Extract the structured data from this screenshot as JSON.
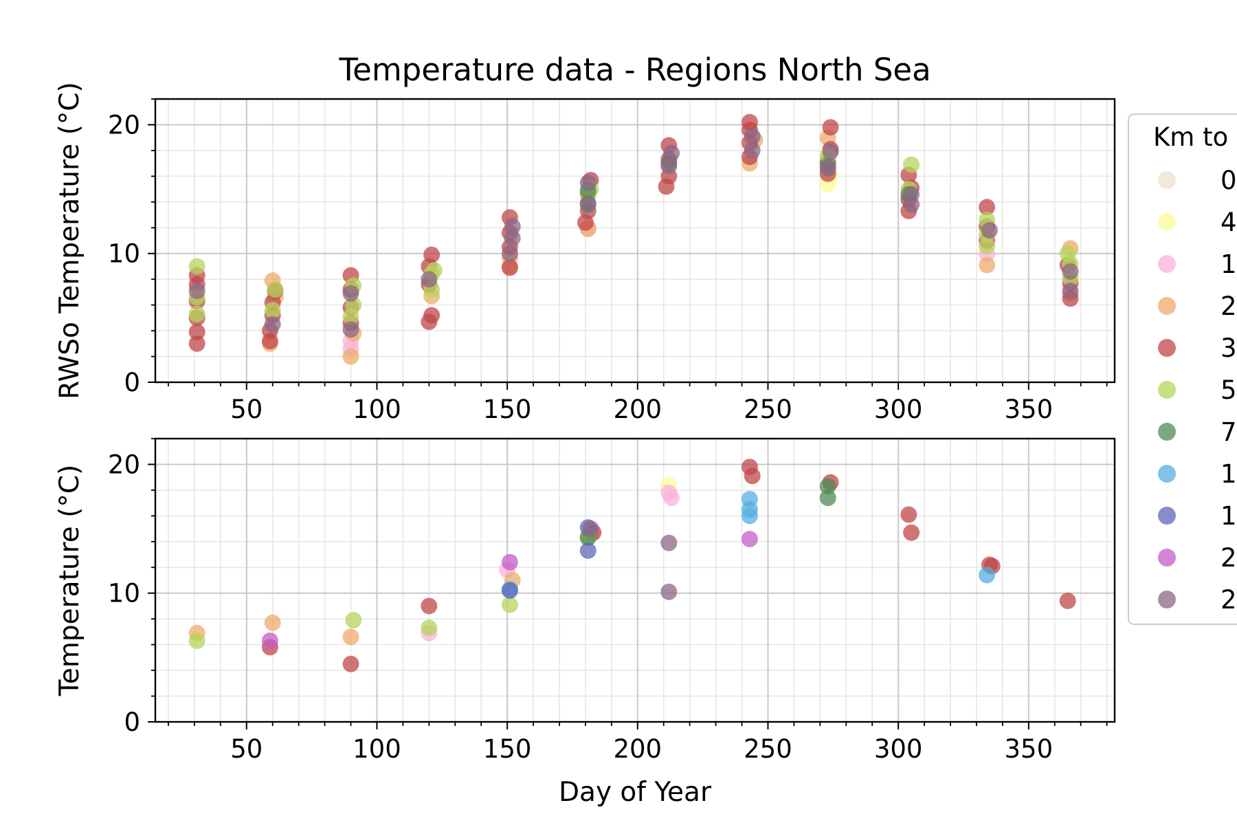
{
  "chart_data": [
    {
      "type": "scatter",
      "title": "Temperature data - Regions North Sea",
      "xlabel": "",
      "ylabel": "RWSo Temperature (°C)",
      "xlim": [
        15,
        383
      ],
      "ylim": [
        0,
        22
      ],
      "xticks": [
        "50",
        "100",
        "150",
        "200",
        "250",
        "300",
        "350"
      ],
      "yticks": [
        "0",
        "10",
        "20"
      ],
      "grid": true,
      "series": [
        {
          "key": "s0",
          "points": []
        },
        {
          "key": "s1",
          "points": [
            [
              273,
              15.4
            ],
            [
              274,
              16.0
            ]
          ]
        },
        {
          "key": "s2",
          "points": [
            [
              90,
              2.6
            ],
            [
              90,
              3.2
            ],
            [
              181,
              12.0
            ],
            [
              334,
              10.0
            ]
          ]
        },
        {
          "key": "s3",
          "points": [
            [
              59,
              3.0
            ],
            [
              60,
              7.9
            ],
            [
              61,
              6.6
            ],
            [
              90,
              2.0
            ],
            [
              91,
              3.8
            ],
            [
              121,
              6.7
            ],
            [
              151,
              9.0
            ],
            [
              151,
              9.7
            ],
            [
              181,
              11.9
            ],
            [
              243,
              17.0
            ],
            [
              245,
              18.8
            ],
            [
              273,
              19.0
            ],
            [
              334,
              9.1
            ],
            [
              366,
              6.9
            ],
            [
              366,
              10.4
            ]
          ]
        },
        {
          "key": "s4",
          "points": [
            [
              31,
              3.0
            ],
            [
              31,
              3.9
            ],
            [
              31,
              5.0
            ],
            [
              31,
              6.3
            ],
            [
              31,
              7.6
            ],
            [
              31,
              8.3
            ],
            [
              59,
              3.2
            ],
            [
              59,
              4.0
            ],
            [
              60,
              5.2
            ],
            [
              60,
              6.2
            ],
            [
              61,
              7.1
            ],
            [
              90,
              4.6
            ],
            [
              90,
              5.8
            ],
            [
              90,
              7.2
            ],
            [
              90,
              8.3
            ],
            [
              120,
              4.7
            ],
            [
              121,
              5.2
            ],
            [
              120,
              7.6
            ],
            [
              120,
              9.0
            ],
            [
              121,
              9.9
            ],
            [
              151,
              8.9
            ],
            [
              151,
              10.5
            ],
            [
              151,
              11.6
            ],
            [
              151,
              12.8
            ],
            [
              180,
              12.4
            ],
            [
              181,
              13.3
            ],
            [
              181,
              14.6
            ],
            [
              182,
              15.7
            ],
            [
              211,
              15.2
            ],
            [
              212,
              16.0
            ],
            [
              212,
              17.3
            ],
            [
              212,
              18.4
            ],
            [
              243,
              17.5
            ],
            [
              243,
              18.6
            ],
            [
              243,
              19.6
            ],
            [
              243,
              20.2
            ],
            [
              273,
              16.2
            ],
            [
              273,
              17.1
            ],
            [
              274,
              18.1
            ],
            [
              274,
              19.8
            ],
            [
              304,
              13.3
            ],
            [
              304,
              14.2
            ],
            [
              305,
              15.1
            ],
            [
              304,
              16.1
            ],
            [
              334,
              11.0
            ],
            [
              334,
              12.1
            ],
            [
              334,
              13.6
            ],
            [
              366,
              6.5
            ],
            [
              366,
              7.7
            ],
            [
              365,
              9.1
            ]
          ]
        },
        {
          "key": "s5",
          "points": [
            [
              31,
              5.3
            ],
            [
              31,
              6.6
            ],
            [
              31,
              9.0
            ],
            [
              60,
              5.6
            ],
            [
              61,
              7.2
            ],
            [
              90,
              5.1
            ],
            [
              91,
              6.0
            ],
            [
              91,
              7.5
            ],
            [
              121,
              7.2
            ],
            [
              121,
              8.4
            ],
            [
              122,
              8.7
            ],
            [
              181,
              14.6
            ],
            [
              182,
              15.0
            ],
            [
              273,
              17.6
            ],
            [
              304,
              15.0
            ],
            [
              305,
              16.9
            ],
            [
              334,
              10.6
            ],
            [
              334,
              11.5
            ],
            [
              334,
              12.6
            ],
            [
              366,
              8.1
            ],
            [
              366,
              9.2
            ],
            [
              365,
              10.0
            ]
          ]
        },
        {
          "key": "s6",
          "points": [
            [
              181,
              13.8
            ],
            [
              181,
              14.9
            ],
            [
              212,
              17.0
            ],
            [
              273,
              16.8
            ],
            [
              304,
              14.6
            ]
          ]
        },
        {
          "key": "s7",
          "points": []
        },
        {
          "key": "s8",
          "points": []
        },
        {
          "key": "s9",
          "points": []
        },
        {
          "key": "s10",
          "points": [
            [
              31,
              7.1
            ],
            [
              60,
              4.5
            ],
            [
              90,
              4.1
            ],
            [
              90,
              6.9
            ],
            [
              120,
              8.0
            ],
            [
              151,
              10.0
            ],
            [
              152,
              11.2
            ],
            [
              152,
              12.1
            ],
            [
              181,
              13.9
            ],
            [
              181,
              15.5
            ],
            [
              212,
              16.8
            ],
            [
              213,
              17.8
            ],
            [
              244,
              18.0
            ],
            [
              244,
              19.1
            ],
            [
              273,
              16.6
            ],
            [
              274,
              17.9
            ],
            [
              305,
              13.8
            ],
            [
              305,
              14.6
            ],
            [
              335,
              11.8
            ],
            [
              366,
              7.1
            ],
            [
              366,
              8.6
            ]
          ]
        }
      ]
    },
    {
      "type": "scatter",
      "title": "",
      "xlabel": "Day of Year",
      "ylabel": "Temperature (°C)",
      "xlim": [
        15,
        383
      ],
      "ylim": [
        0,
        22
      ],
      "xticks": [
        "50",
        "100",
        "150",
        "200",
        "250",
        "300",
        "350"
      ],
      "yticks": [
        "0",
        "10",
        "20"
      ],
      "grid": true,
      "series": [
        {
          "key": "s0",
          "points": []
        },
        {
          "key": "s1",
          "points": [
            [
              212,
              18.4
            ]
          ]
        },
        {
          "key": "s2",
          "points": [
            [
              120,
              6.9
            ],
            [
              150,
              11.8
            ],
            [
              212,
              17.8
            ],
            [
              213,
              17.4
            ]
          ]
        },
        {
          "key": "s3",
          "points": [
            [
              31,
              6.9
            ],
            [
              60,
              7.7
            ],
            [
              90,
              6.6
            ],
            [
              152,
              11.0
            ],
            [
              182,
              14.6
            ]
          ]
        },
        {
          "key": "s4",
          "points": [
            [
              59,
              5.8
            ],
            [
              90,
              4.5
            ],
            [
              120,
              9.0
            ],
            [
              183,
              14.7
            ],
            [
              243,
              19.8
            ],
            [
              244,
              19.1
            ],
            [
              274,
              18.6
            ],
            [
              304,
              16.1
            ],
            [
              305,
              14.7
            ],
            [
              335,
              12.2
            ],
            [
              336,
              12.1
            ],
            [
              365,
              9.4
            ]
          ]
        },
        {
          "key": "s5",
          "points": [
            [
              31,
              6.3
            ],
            [
              91,
              7.9
            ],
            [
              120,
              7.3
            ],
            [
              151,
              9.1
            ],
            [
              181,
              14.4
            ]
          ]
        },
        {
          "key": "s6",
          "points": [
            [
              181,
              14.3
            ],
            [
              273,
              17.4
            ],
            [
              273,
              18.3
            ]
          ]
        },
        {
          "key": "s7",
          "points": [
            [
              151,
              10.3
            ],
            [
              243,
              17.3
            ],
            [
              243,
              16.5
            ],
            [
              243,
              16.0
            ],
            [
              334,
              11.4
            ]
          ]
        },
        {
          "key": "s8",
          "points": [
            [
              151,
              10.2
            ],
            [
              181,
              13.3
            ],
            [
              181,
              15.1
            ]
          ]
        },
        {
          "key": "s9",
          "points": [
            [
              59,
              6.3
            ],
            [
              151,
              12.4
            ],
            [
              243,
              14.2
            ]
          ]
        },
        {
          "key": "s10",
          "points": [
            [
              212,
              13.9
            ],
            [
              212,
              10.1
            ],
            [
              182,
              15.0
            ]
          ]
        }
      ]
    }
  ],
  "legend": {
    "title": "Km to",
    "position": "right (clipped)",
    "entries": [
      {
        "key": "s0",
        "label": "0",
        "color": "#ece3cf"
      },
      {
        "key": "s1",
        "label": "4",
        "color": "#fbfb9c"
      },
      {
        "key": "s2",
        "label": "1",
        "color": "#fbb2d8"
      },
      {
        "key": "s3",
        "label": "2",
        "color": "#eeab6b"
      },
      {
        "key": "s4",
        "label": "3",
        "color": "#c0474a"
      },
      {
        "key": "s5",
        "label": "5",
        "color": "#b5d45a"
      },
      {
        "key": "s6",
        "label": "7",
        "color": "#4f8b55"
      },
      {
        "key": "s7",
        "label": "1",
        "color": "#55aee0"
      },
      {
        "key": "s8",
        "label": "1",
        "color": "#5e67b8"
      },
      {
        "key": "s9",
        "label": "2",
        "color": "#c45cc8"
      },
      {
        "key": "s10",
        "label": "2",
        "color": "#8c6787"
      }
    ]
  },
  "colors": {
    "dark_red_overlay": "#a80d0d"
  }
}
